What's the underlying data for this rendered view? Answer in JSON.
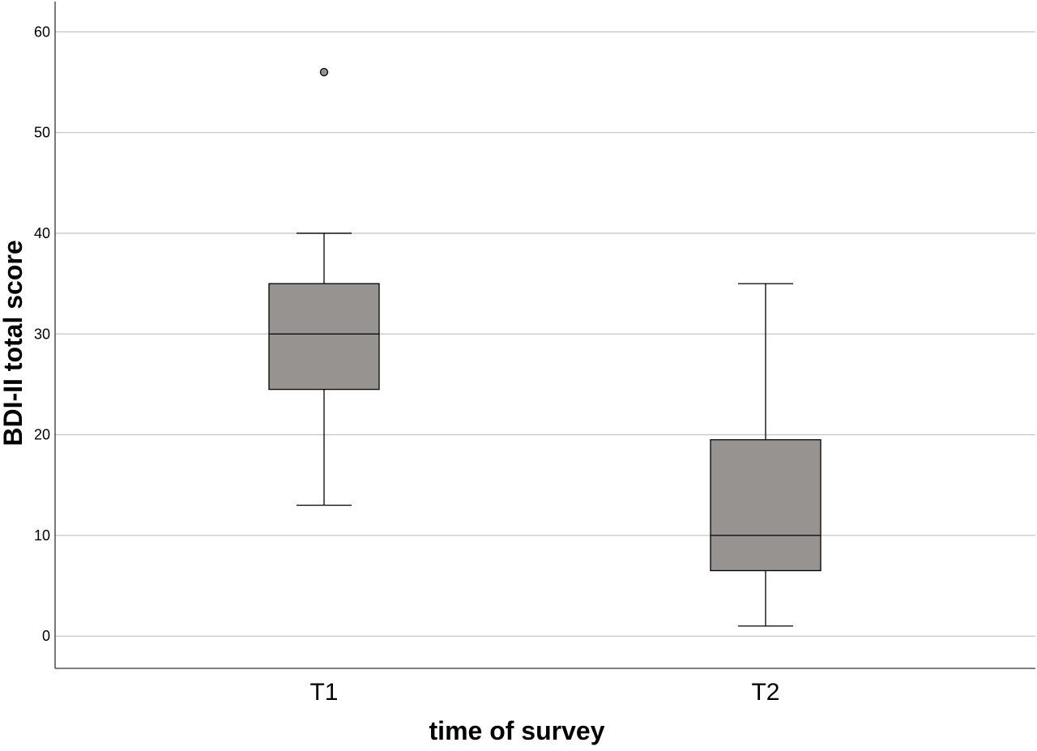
{
  "chart_data": {
    "type": "boxplot",
    "title": "",
    "xlabel": "time of survey",
    "ylabel": "BDI-II total score",
    "ylim": [
      -3.2,
      63
    ],
    "yticks": [
      0,
      10,
      20,
      30,
      40,
      50,
      60
    ],
    "ytick_labels": [
      "0",
      "10",
      "20",
      "30",
      "40",
      "50",
      "60"
    ],
    "grid": "horizontal",
    "legend": "none",
    "colors": {
      "box_fill": "#969391",
      "outlier_fill": "#969391",
      "grid": "#c8c8c8",
      "line": "#000000"
    },
    "categories": [
      "T1",
      "T2"
    ],
    "boxes": [
      {
        "category": "T1",
        "whisker_low": 13,
        "q1": 24.5,
        "median": 30,
        "q3": 35,
        "whisker_high": 40,
        "outliers": [
          56
        ]
      },
      {
        "category": "T2",
        "whisker_low": 1,
        "q1": 6.5,
        "median": 10,
        "q3": 19.5,
        "whisker_high": 35,
        "outliers": []
      }
    ]
  }
}
